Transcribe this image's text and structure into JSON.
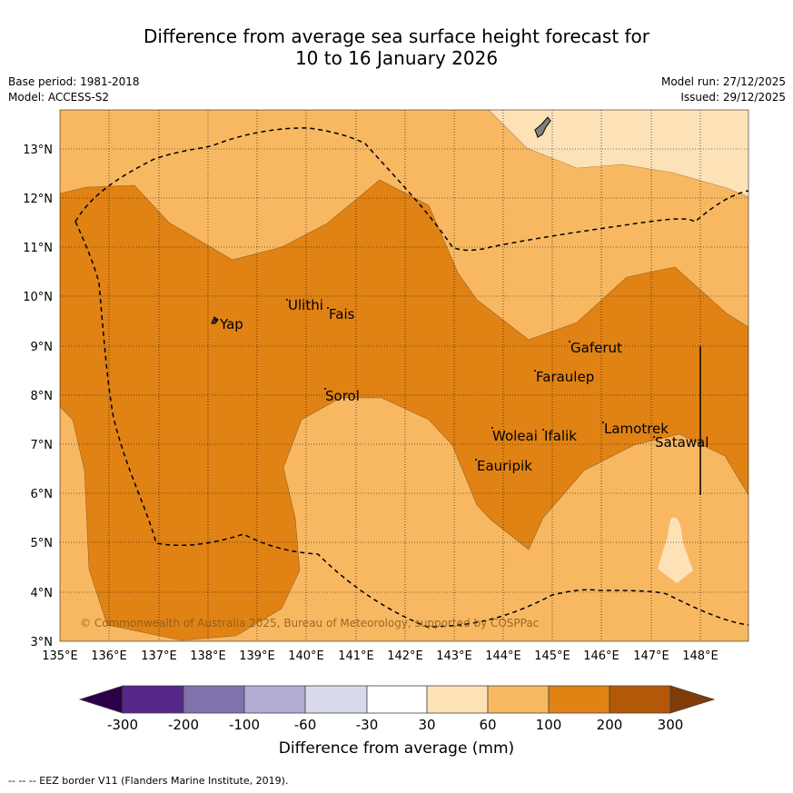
{
  "title_line1": "Difference from average sea surface height forecast for",
  "title_line2": "10 to 16 January 2026",
  "meta": {
    "base_period": "Base period: 1981-2018",
    "model": "Model: ACCESS-S2",
    "model_run": "Model run: 27/12/2025",
    "issued": "Issued: 29/12/2025"
  },
  "map": {
    "lon_labels": [
      "135°E",
      "136°E",
      "137°E",
      "138°E",
      "139°E",
      "140°E",
      "141°E",
      "142°E",
      "143°E",
      "144°E",
      "145°E",
      "146°E",
      "147°E",
      "148°E"
    ],
    "lat_labels": [
      "13°N",
      "12°N",
      "11°N",
      "10°N",
      "9°N",
      "8°N",
      "7°N",
      "6°N",
      "5°N",
      "4°N",
      "3°N"
    ],
    "places": [
      "Yap",
      "Ulithi",
      "Fais",
      "Gaferut",
      "Faraulep",
      "Sorol",
      "Woleai",
      "Ifalik",
      "Lamotrek",
      "Satawal",
      "Eauripik"
    ],
    "copyright": "© Commonwealth of Australia 2025, Bureau of Meteorology, supported by COSPPac"
  },
  "colors": {
    "c30_60": "#fde2b8",
    "c60_100": "#f8b862",
    "c100_200": "#e08214",
    "c200_300": "#b35806",
    "ext_high": "#7f3b08",
    "cm30_30": "#ffffff",
    "cm60_m30": "#d8daeb",
    "cm100_m60": "#b2abd2",
    "cm200_m100": "#8073ac",
    "cm300_m200": "#542788",
    "ext_low": "#2d004b"
  },
  "colorbar": {
    "labels": [
      "-300",
      "-200",
      "-100",
      "-60",
      "-30",
      "30",
      "60",
      "100",
      "200",
      "300"
    ],
    "title": "Difference from average (mm)"
  },
  "footer": "--  --  -- EEZ border V11 (Flanders Marine Institute, 2019)."
}
